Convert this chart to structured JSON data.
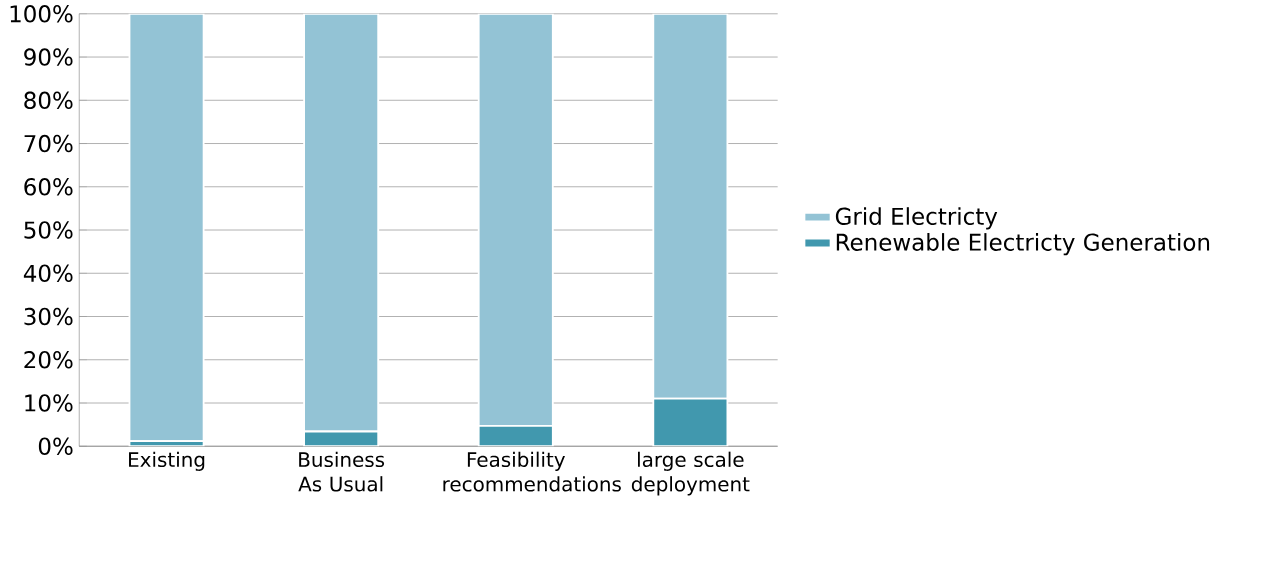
{
  "chart_data": {
    "type": "bar",
    "stacked": true,
    "categories": [
      "Existing",
      "Business As Usual",
      "Feasibility recommendations",
      "large scale deployment"
    ],
    "series": [
      {
        "name": "Renewable Electricty Generation",
        "color": "#4198ae",
        "values": [
          1.2,
          3.4,
          4.7,
          11
        ]
      },
      {
        "name": "Grid Electricty",
        "color": "#93c3d5",
        "values": [
          98.8,
          96.6,
          95.3,
          89
        ]
      }
    ],
    "ylim": [
      0,
      100
    ],
    "yticks": [
      {
        "value": 0,
        "label": "0%"
      },
      {
        "value": 10,
        "label": "10%"
      },
      {
        "value": 20,
        "label": "20%"
      },
      {
        "value": 30,
        "label": "30%"
      },
      {
        "value": 40,
        "label": "40%"
      },
      {
        "value": 50,
        "label": "50%"
      },
      {
        "value": 60,
        "label": "60%"
      },
      {
        "value": 70,
        "label": "70%"
      },
      {
        "value": 80,
        "label": "80%"
      },
      {
        "value": 90,
        "label": "90%"
      },
      {
        "value": 100,
        "label": "100%"
      }
    ],
    "grid": "y",
    "legend": "right"
  }
}
